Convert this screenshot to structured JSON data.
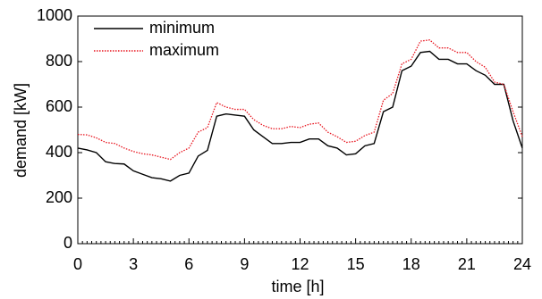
{
  "chart_data": {
    "type": "line",
    "xlabel": "time [h]",
    "ylabel": "demand [kW]",
    "x": [
      0,
      0.5,
      1,
      1.5,
      2,
      2.5,
      3,
      3.5,
      4,
      4.5,
      5,
      5.5,
      6,
      6.5,
      7,
      7.5,
      8,
      8.5,
      9,
      9.5,
      10,
      10.5,
      11,
      11.5,
      12,
      12.5,
      13,
      13.5,
      14,
      14.5,
      15,
      15.5,
      16,
      16.5,
      17,
      17.5,
      18,
      18.5,
      19,
      19.5,
      20,
      20.5,
      21,
      21.5,
      22,
      22.5,
      23,
      23.5,
      24
    ],
    "series": [
      {
        "name": "minimum",
        "color": "#000000",
        "dash": "solid",
        "values": [
          420,
          412,
          400,
          360,
          352,
          350,
          320,
          305,
          290,
          285,
          275,
          300,
          310,
          385,
          410,
          560,
          570,
          565,
          560,
          500,
          470,
          440,
          440,
          445,
          445,
          460,
          460,
          430,
          420,
          390,
          395,
          430,
          440,
          580,
          600,
          760,
          780,
          840,
          845,
          810,
          810,
          790,
          790,
          760,
          740,
          700,
          700,
          540,
          420
        ]
      },
      {
        "name": "maximum",
        "color": "#e8141e",
        "dash": "dotted",
        "values": [
          480,
          478,
          465,
          445,
          440,
          420,
          405,
          395,
          390,
          380,
          370,
          400,
          420,
          490,
          510,
          620,
          600,
          590,
          590,
          545,
          520,
          505,
          505,
          515,
          510,
          525,
          530,
          490,
          470,
          445,
          450,
          475,
          490,
          630,
          660,
          790,
          810,
          890,
          895,
          860,
          860,
          840,
          840,
          800,
          775,
          710,
          700,
          580,
          470
        ]
      }
    ],
    "xlim": [
      0,
      24
    ],
    "xticks": [
      0,
      3,
      6,
      9,
      12,
      15,
      18,
      21,
      24
    ],
    "ylim": [
      0,
      1000
    ],
    "yticks": [
      0,
      200,
      400,
      600,
      800,
      1000
    ],
    "grid": false,
    "legend": "upper left"
  }
}
